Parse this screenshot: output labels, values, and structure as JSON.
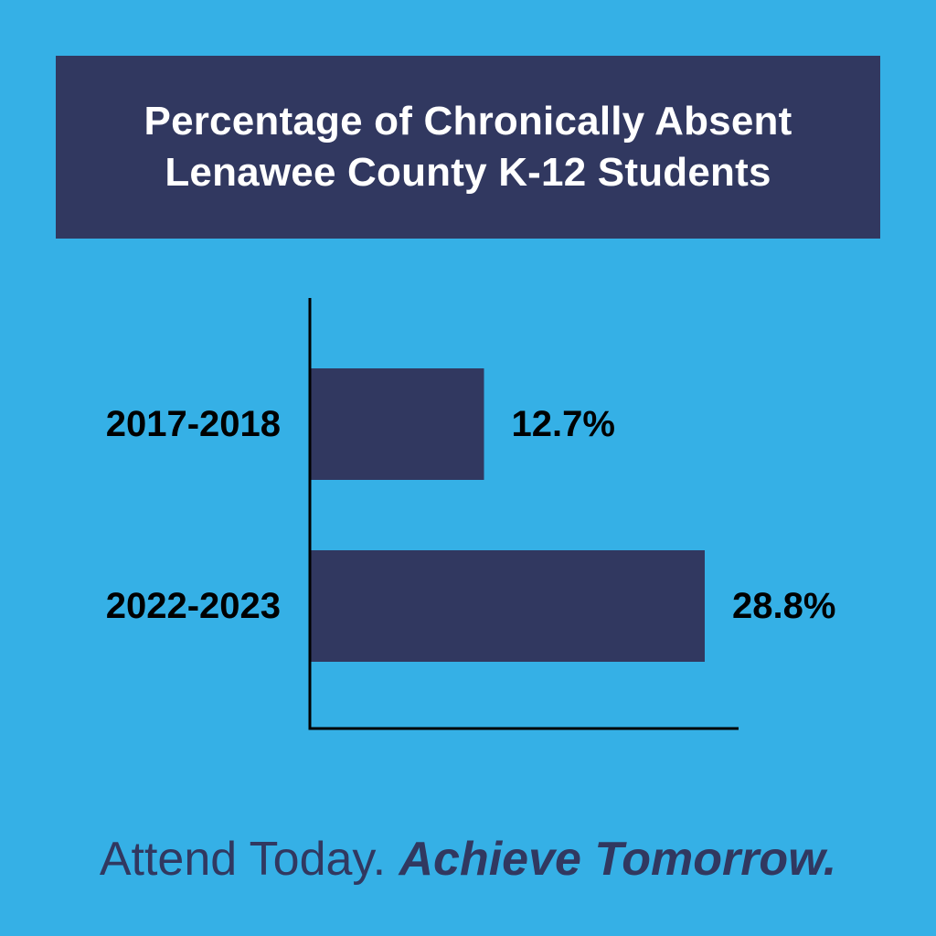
{
  "colors": {
    "background": "#35b0e6",
    "title_box": "#313860",
    "bar": "#313860",
    "axis": "#000000",
    "tagline": "#313860"
  },
  "title": {
    "line1": "Percentage of Chronically Absent",
    "line2": "Lenawee County K-12 Students"
  },
  "chart_data": {
    "type": "bar",
    "orientation": "horizontal",
    "title": "Percentage of Chronically Absent Lenawee County K-12 Students",
    "categories": [
      "2017-2018",
      "2022-2023"
    ],
    "values": [
      12.7,
      28.8
    ],
    "value_labels": [
      "12.7%",
      "28.8%"
    ],
    "xlim": [
      0,
      34
    ],
    "grid": false,
    "legend": "none"
  },
  "tagline": {
    "part1": "Attend Today. ",
    "part2": "Achieve Tomorrow."
  }
}
